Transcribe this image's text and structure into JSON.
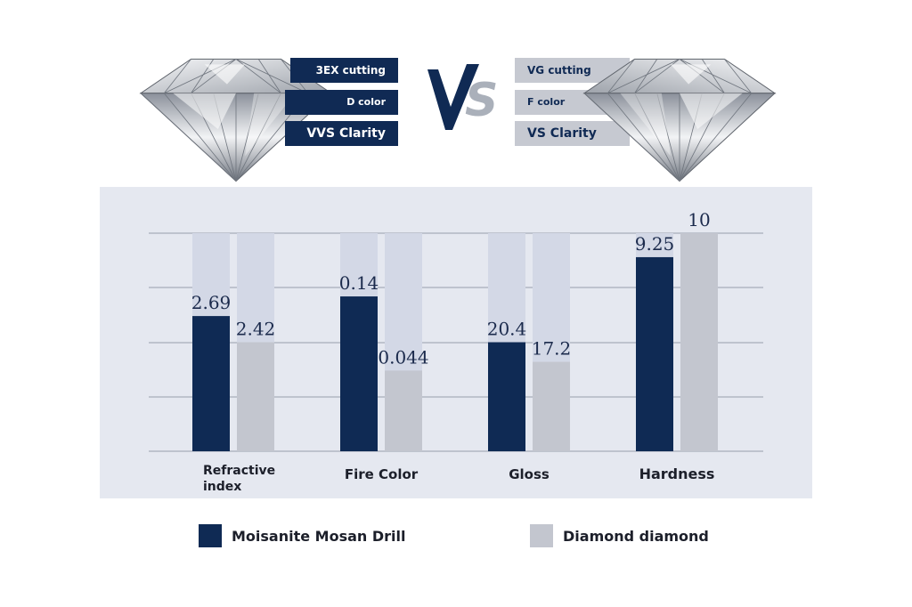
{
  "left_specs": [
    "3EX cutting",
    "D color",
    "VVS Clarity"
  ],
  "right_specs": [
    "VG cutting",
    "F color",
    "VS Clarity"
  ],
  "vs_text": "VS",
  "colors": {
    "moissanite": "#0f2a54",
    "diamond_fill": "#c3c6cf",
    "track": "#d3d8e6",
    "panel": "#e5e8f0",
    "gridline": "#a8adb9"
  },
  "legend": [
    {
      "label": "Moisanite Mosan Drill",
      "color": "#0f2a54"
    },
    {
      "label": "Diamond diamond",
      "color": "#c3c6cf"
    }
  ],
  "chart_data": {
    "type": "bar",
    "categories": [
      [
        "Refractive",
        "index"
      ],
      [
        "Fire Color"
      ],
      [
        "Gloss"
      ],
      [
        "Hardness"
      ]
    ],
    "series": [
      {
        "name": "Moisanite Mosan Drill",
        "labels": [
          "2.69",
          "0.14",
          "20.4",
          "9.25"
        ],
        "fraction_of_track": [
          0.62,
          0.71,
          0.5,
          0.89
        ]
      },
      {
        "name": "Diamond diamond",
        "labels": [
          "2.42",
          "0.044",
          "17.2",
          "10"
        ],
        "fraction_of_track": [
          0.5,
          0.37,
          0.41,
          1.0
        ]
      }
    ],
    "ylabel": "",
    "xlabel": "",
    "grid": true,
    "legend_position": "bottom"
  }
}
